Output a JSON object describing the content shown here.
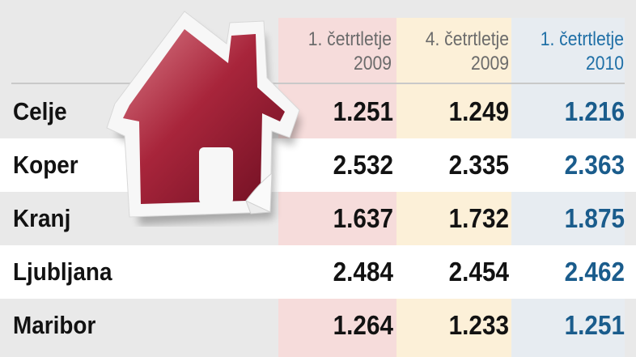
{
  "columns": [
    {
      "line1": "1. četrtletje",
      "line2": "2009"
    },
    {
      "line1": "4. četrtletje",
      "line2": "2009"
    },
    {
      "line1": "1. četrtletje",
      "line2": "2010"
    }
  ],
  "rows": [
    {
      "city": "Celje",
      "values": [
        "1.251",
        "1.249",
        "1.216"
      ]
    },
    {
      "city": "Koper",
      "values": [
        "2.532",
        "2.335",
        "2.363"
      ]
    },
    {
      "city": "Kranj",
      "values": [
        "1.637",
        "1.732",
        "1.875"
      ]
    },
    {
      "city": "Ljubljana",
      "values": [
        "2.484",
        "2.454",
        "2.462"
      ]
    },
    {
      "city": "Maribor",
      "values": [
        "1.264",
        "1.233",
        "1.251"
      ]
    }
  ],
  "colors": {
    "highlight_value": "#1a5c8c",
    "house": "#9c1f35"
  }
}
